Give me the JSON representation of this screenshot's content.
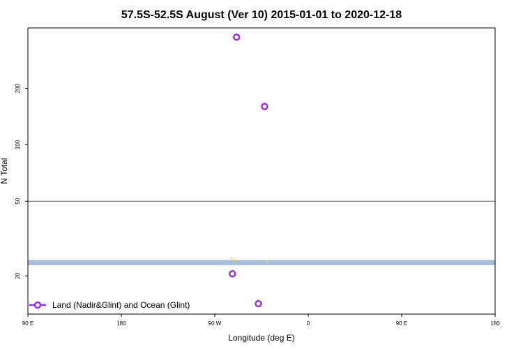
{
  "chart_data": {
    "type": "scatter",
    "title": "57.5S-52.5S August (Ver 10)   2015-01-01 to 2020-12-18",
    "xlabel": "Longitude (deg E)",
    "ylabel": "N Total",
    "x_ticks": [
      {
        "value": 90,
        "label": "90 E"
      },
      {
        "value": 180,
        "label": "180"
      },
      {
        "value": 270,
        "label": "90 W"
      },
      {
        "value": 360,
        "label": "0"
      },
      {
        "value": 450,
        "label": "90 E"
      },
      {
        "value": 540,
        "label": "180"
      }
    ],
    "xlim": [
      90,
      540
    ],
    "y_scale": "log",
    "y_ticks": [
      20,
      50,
      100,
      200
    ],
    "ylim": [
      12.5,
      420
    ],
    "reference_line_y": 50,
    "band": {
      "y_min": 22.8,
      "y_max": 24.3,
      "color": "#a8bddc"
    },
    "series": [
      {
        "name": "Land (Nadir&Glint) and Ocean (Glint)",
        "color": "#9b30e0",
        "marker": "open-circle",
        "points": [
          {
            "x": 291,
            "y": 375
          },
          {
            "x": 318,
            "y": 160
          },
          {
            "x": 287,
            "y": 20.5
          },
          {
            "x": 312,
            "y": 14.2
          }
        ]
      }
    ],
    "minor_marks": {
      "color": "#f2d24b",
      "points": [
        {
          "x": 286,
          "y": 24.9
        },
        {
          "x": 289,
          "y": 24.4
        },
        {
          "x": 290,
          "y": 24.0
        },
        {
          "x": 320,
          "y": 23.8
        }
      ]
    },
    "legend": {
      "placement": "bottom-left"
    },
    "grid": false
  }
}
